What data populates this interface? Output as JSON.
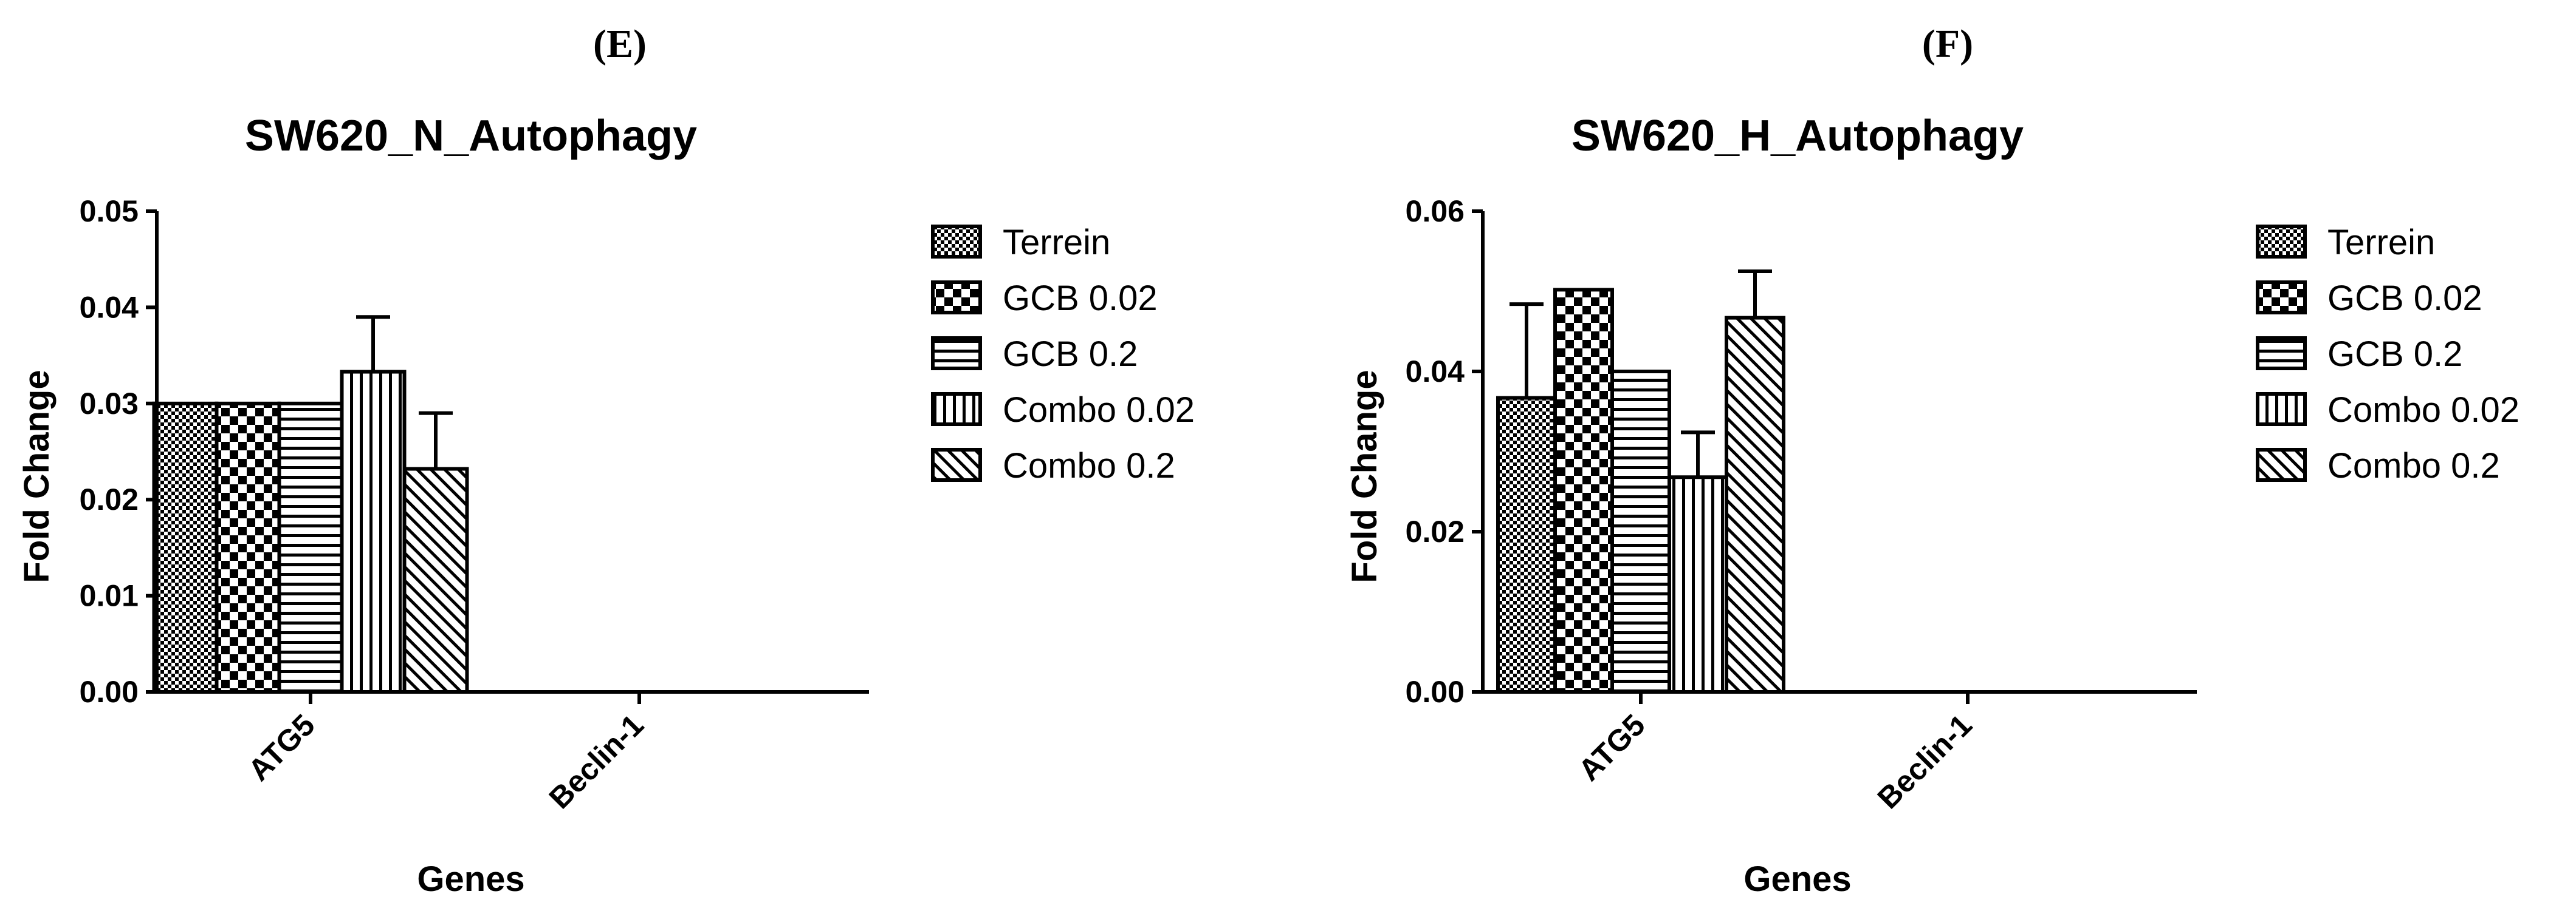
{
  "panels": [
    {
      "label": "(E)"
    },
    {
      "label": "(F)"
    }
  ],
  "chart_data": [
    {
      "type": "bar",
      "title": "SW620_N_Autophagy",
      "xlabel": "Genes",
      "ylabel": "Fold Change",
      "categories": [
        "ATG5",
        "Beclin-1"
      ],
      "ylim": [
        0,
        0.05
      ],
      "yticks": [
        "0.00",
        "0.01",
        "0.02",
        "0.03",
        "0.04",
        "0.05"
      ],
      "legend_position": "right",
      "series": [
        {
          "name": "Terrein",
          "pattern": "checker-fine",
          "values": [
            0.03,
            null
          ],
          "errors": [
            0,
            null
          ]
        },
        {
          "name": "GCB 0.02",
          "pattern": "checker-bold",
          "values": [
            0.03,
            null
          ],
          "errors": [
            0,
            null
          ]
        },
        {
          "name": "GCB 0.2",
          "pattern": "horizontal",
          "values": [
            0.03,
            null
          ],
          "errors": [
            0,
            null
          ]
        },
        {
          "name": "Combo 0.02",
          "pattern": "vertical",
          "values": [
            0.0333,
            null
          ],
          "errors": [
            0.0057,
            null
          ]
        },
        {
          "name": "Combo 0.2",
          "pattern": "diagonal",
          "values": [
            0.0232,
            null
          ],
          "errors": [
            0.0058,
            null
          ]
        }
      ]
    },
    {
      "type": "bar",
      "title": "SW620_H_Autophagy",
      "xlabel": "Genes",
      "ylabel": "Fold Change",
      "categories": [
        "ATG5",
        "Beclin-1"
      ],
      "ylim": [
        0,
        0.06
      ],
      "yticks": [
        "0.00",
        "0.02",
        "0.04",
        "0.06"
      ],
      "legend_position": "right",
      "series": [
        {
          "name": "Terrein",
          "pattern": "checker-fine",
          "values": [
            0.0367,
            null
          ],
          "errors": [
            0.0117,
            null
          ]
        },
        {
          "name": "GCB 0.02",
          "pattern": "checker-bold",
          "values": [
            0.0502,
            null
          ],
          "errors": [
            0,
            null
          ]
        },
        {
          "name": "GCB 0.2",
          "pattern": "horizontal",
          "values": [
            0.04,
            null
          ],
          "errors": [
            0,
            null
          ]
        },
        {
          "name": "Combo 0.02",
          "pattern": "vertical",
          "values": [
            0.0268,
            null
          ],
          "errors": [
            0.0056,
            null
          ]
        },
        {
          "name": "Combo 0.2",
          "pattern": "diagonal",
          "values": [
            0.0467,
            null
          ],
          "errors": [
            0.0058,
            null
          ]
        }
      ]
    }
  ]
}
